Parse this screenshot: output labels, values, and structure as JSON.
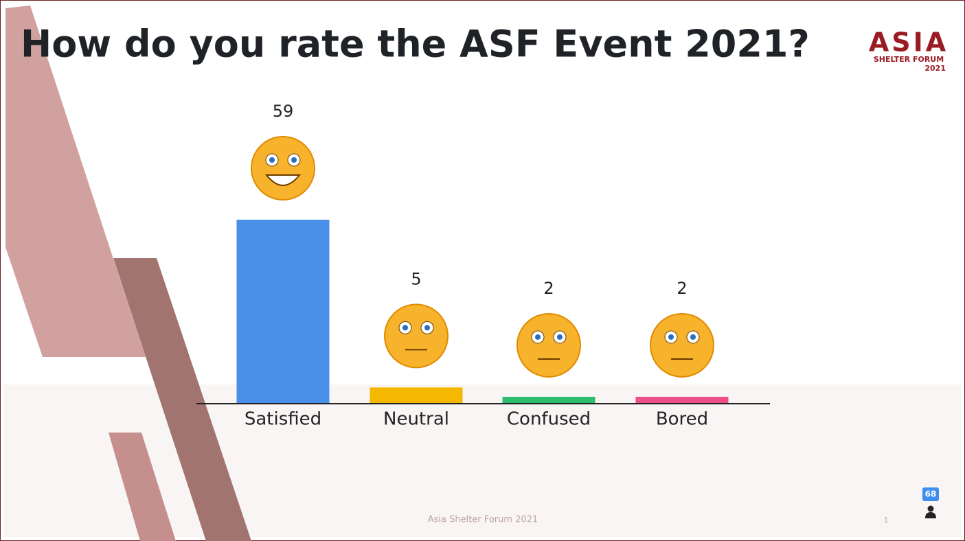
{
  "chart_data": {
    "type": "bar",
    "title": "How do you rate the ASF Event 2021?",
    "categories": [
      "Satisfied",
      "Neutral",
      "Confused",
      "Bored"
    ],
    "values": [
      59,
      5,
      2,
      2
    ],
    "colors": [
      "#4a90e8",
      "#f5b800",
      "#2cbd6e",
      "#f0508a"
    ]
  },
  "logo": {
    "name": "ASIA",
    "subtitle": "SHELTER FORUM",
    "year": "2021"
  },
  "footer": "Asia Shelter Forum 2021",
  "page_number": 1,
  "participants": 68
}
